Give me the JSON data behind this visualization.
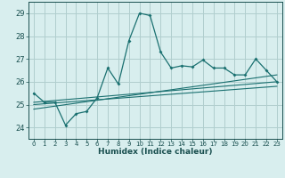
{
  "xlabel": "Humidex (Indice chaleur)",
  "bg_color": "#d8eeee",
  "grid_color": "#b0cece",
  "line_color": "#1a7070",
  "xlim": [
    -0.5,
    23.5
  ],
  "ylim": [
    23.5,
    29.5
  ],
  "xticks": [
    0,
    1,
    2,
    3,
    4,
    5,
    6,
    7,
    8,
    9,
    10,
    11,
    12,
    13,
    14,
    15,
    16,
    17,
    18,
    19,
    20,
    21,
    22,
    23
  ],
  "yticks": [
    24,
    25,
    26,
    27,
    28,
    29
  ],
  "series1": [
    25.5,
    25.1,
    25.1,
    24.1,
    24.6,
    24.7,
    25.3,
    26.6,
    25.9,
    27.8,
    29.0,
    28.9,
    27.3,
    26.6,
    26.7,
    26.65,
    26.95,
    26.6,
    26.6,
    26.3,
    26.3,
    27.0,
    26.5,
    26.0
  ],
  "series2_x": [
    0,
    23
  ],
  "series2_y": [
    25.1,
    26.0
  ],
  "series3_x": [
    0,
    23
  ],
  "series3_y": [
    25.0,
    25.8
  ],
  "series4_x": [
    0,
    23
  ],
  "series4_y": [
    24.8,
    26.3
  ]
}
